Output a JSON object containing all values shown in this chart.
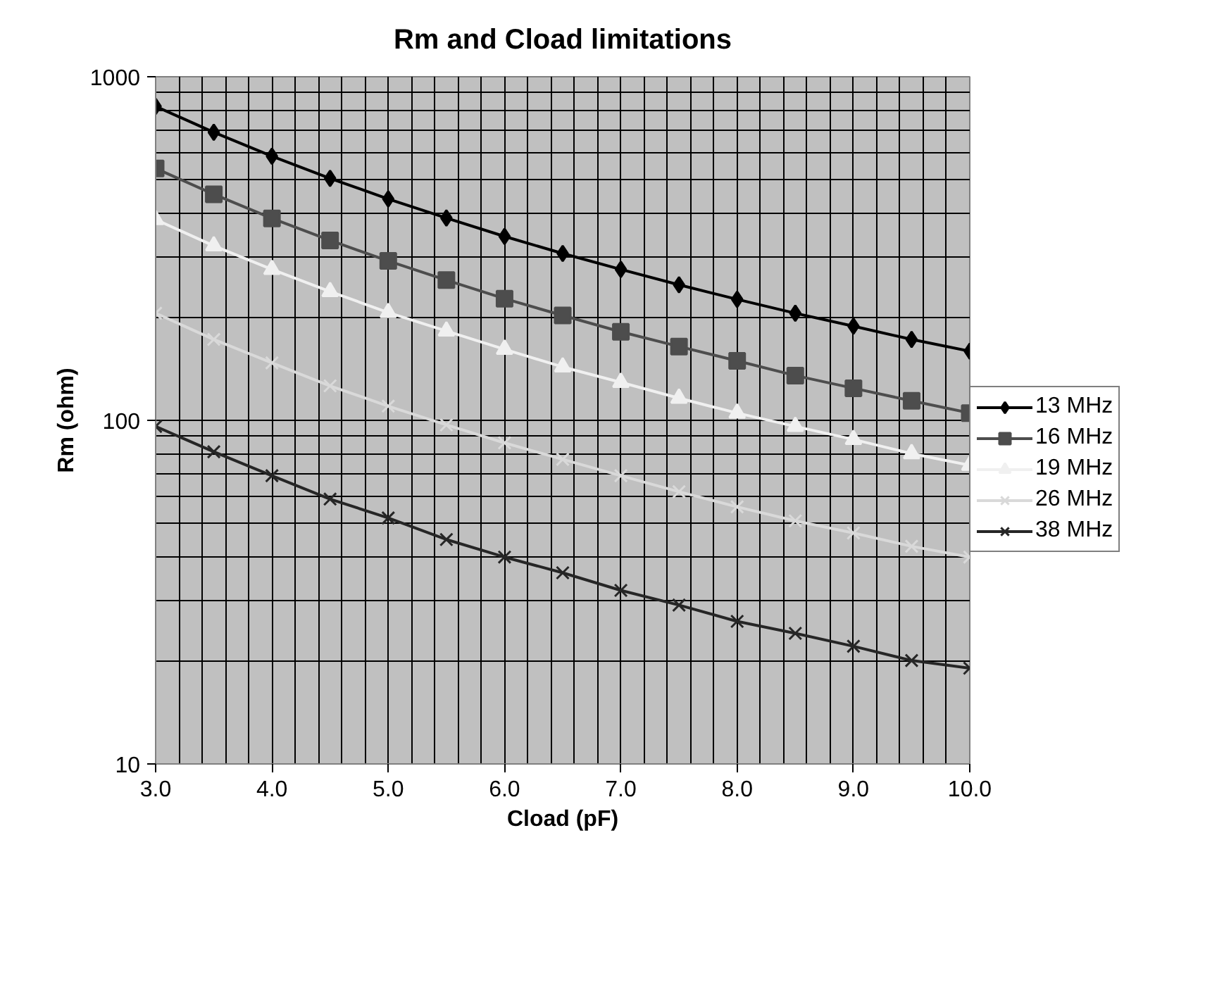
{
  "chart_data": {
    "type": "line",
    "title": "Rm and Cload limitations",
    "xlabel": "Cload (pF)",
    "ylabel": "Rm (ohm)",
    "x": [
      3.0,
      3.5,
      4.0,
      4.5,
      5.0,
      5.5,
      6.0,
      6.5,
      7.0,
      7.5,
      8.0,
      8.5,
      9.0,
      9.5,
      10.0
    ],
    "series": [
      {
        "name": "13 MHz",
        "color": "#000000",
        "marker": "diamond",
        "values": [
          820,
          689,
          587,
          506,
          441,
          388,
          343,
          306,
          275,
          248,
          225,
          205,
          188,
          172,
          159
        ]
      },
      {
        "name": "16 MHz",
        "color": "#4d4d4d",
        "marker": "square",
        "values": [
          541,
          455,
          387,
          334,
          291,
          256,
          226,
          202,
          181,
          164,
          149,
          135,
          124,
          114,
          105
        ]
      },
      {
        "name": "19 MHz",
        "color": "#f0f0f0",
        "marker": "triangle",
        "values": [
          384,
          322,
          275,
          237,
          206,
          182,
          161,
          143,
          129,
          116,
          105,
          96,
          88,
          80,
          74
        ]
      },
      {
        "name": "26 MHz",
        "color": "#d9d9d9",
        "marker": "cross",
        "values": [
          205,
          172,
          147,
          126,
          110,
          97,
          86,
          77,
          69,
          62,
          56,
          51,
          47,
          43,
          40
        ]
      },
      {
        "name": "38 MHz",
        "color": "#262626",
        "marker": "cross",
        "values": [
          96,
          81,
          69,
          59,
          52,
          45,
          40,
          36,
          32,
          29,
          26,
          24,
          22,
          20,
          19
        ]
      }
    ],
    "log": "y",
    "xlim": [
      3.0,
      10.0
    ],
    "ylim": [
      10,
      1000
    ],
    "xticks": [
      {
        "value": 3,
        "label": "3.0"
      },
      {
        "value": 4,
        "label": "4.0"
      },
      {
        "value": 5,
        "label": "5.0"
      },
      {
        "value": 6,
        "label": "6.0"
      },
      {
        "value": 7,
        "label": "7.0"
      },
      {
        "value": 8,
        "label": "8.0"
      },
      {
        "value": 9,
        "label": "9.0"
      },
      {
        "value": 10,
        "label": "10.0"
      }
    ],
    "yticks": [
      10,
      100,
      1000
    ],
    "grid": true,
    "legend": "right",
    "line_style": "solid"
  }
}
